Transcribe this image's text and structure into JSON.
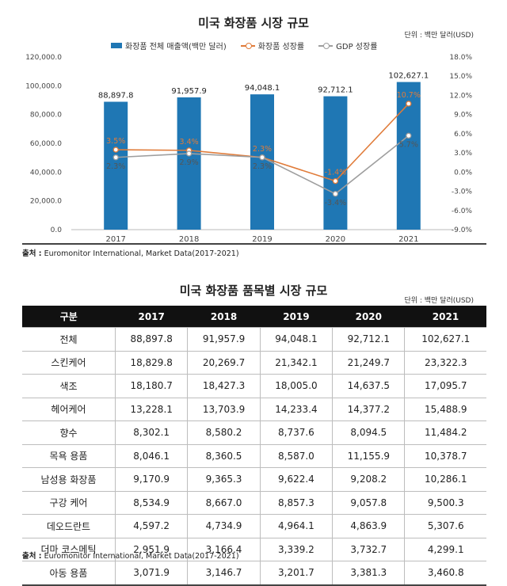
{
  "chart_title": "미국 화장품 시장 규모",
  "chart_unit": "단위 : 백만 달러(USD)",
  "legend": {
    "bar": "화장품 전체 매출액(백만 달러)",
    "line1": "화장품 성장률",
    "line2": "GDP 성장률"
  },
  "colors": {
    "bar": "#1f77b4",
    "line1": "#e07b39",
    "line2": "#9e9e9e"
  },
  "chart_data": {
    "type": "bar",
    "categories": [
      "2017",
      "2018",
      "2019",
      "2020",
      "2021"
    ],
    "series": [
      {
        "name": "화장품 전체 매출액(백만 달러)",
        "type": "bar",
        "axis": "left",
        "values": [
          88897.8,
          91957.9,
          94048.1,
          92712.1,
          102627.1
        ],
        "labels": [
          "88,897.8",
          "91,957.9",
          "94,048.1",
          "92,712.1",
          "102,627.1"
        ]
      },
      {
        "name": "화장품 성장률",
        "type": "line",
        "axis": "right",
        "values": [
          3.5,
          3.4,
          2.3,
          -1.4,
          10.7
        ],
        "labels": [
          "3.5%",
          "3.4%",
          "2.3%",
          "-1.4%",
          "10.7%"
        ]
      },
      {
        "name": "GDP 성장률",
        "type": "line",
        "axis": "right",
        "values": [
          2.3,
          2.9,
          2.3,
          -3.4,
          5.7
        ],
        "labels": [
          "2.3%",
          "2.9%",
          "2.3%",
          "-3.4%",
          "5.7%"
        ]
      }
    ],
    "ylim_left": [
      0,
      120000
    ],
    "yticks_left": [
      "0.0",
      "20,000.0",
      "40,000.0",
      "60,000.0",
      "80,000.0",
      "100,000.0",
      "120,000.0"
    ],
    "ylim_right": [
      -9,
      18
    ],
    "yticks_right": [
      "-9.0%",
      "-6.0%",
      "-3.0%",
      "0.0%",
      "3.0%",
      "6.0%",
      "9.0%",
      "12.0%",
      "15.0%",
      "18.0%"
    ],
    "grid": false,
    "legend_position": "top"
  },
  "source1": {
    "label": "출처 :",
    "text": " Euromonitor International, Market Data(2017-2021)"
  },
  "table_title": "미국 화장품 품목별 시장 규모",
  "table_unit": "단위 : 백만 달러(USD)",
  "table": {
    "headers": [
      "구분",
      "2017",
      "2018",
      "2019",
      "2020",
      "2021"
    ],
    "rows": [
      [
        "전체",
        "88,897.8",
        "91,957.9",
        "94,048.1",
        "92,712.1",
        "102,627.1"
      ],
      [
        "스킨케어",
        "18,829.8",
        "20,269.7",
        "21,342.1",
        "21,249.7",
        "23,322.3"
      ],
      [
        "색조",
        "18,180.7",
        "18,427.3",
        "18,005.0",
        "14,637.5",
        "17,095.7"
      ],
      [
        "헤어케어",
        "13,228.1",
        "13,703.9",
        "14,233.4",
        "14,377.2",
        "15,488.9"
      ],
      [
        "향수",
        "8,302.1",
        "8,580.2",
        "8,737.6",
        "8,094.5",
        "11,484.2"
      ],
      [
        "목욕 용품",
        "8,046.1",
        "8,360.5",
        "8,587.0",
        "11,155.9",
        "10,378.7"
      ],
      [
        "남성용 화장품",
        "9,170.9",
        "9,365.3",
        "9,622.4",
        "9,208.2",
        "10,286.1"
      ],
      [
        "구강 케어",
        "8,534.9",
        "8,667.0",
        "8,857.3",
        "9,057.8",
        "9,500.3"
      ],
      [
        "데오드란트",
        "4,597.2",
        "4,734.9",
        "4,964.1",
        "4,863.9",
        "5,307.6"
      ],
      [
        "더마 코스메틱",
        "2,951.9",
        "3,166.4",
        "3,339.2",
        "3,732.7",
        "4,299.1"
      ],
      [
        "아동 용품",
        "3,071.9",
        "3,146.7",
        "3,201.7",
        "3,381.3",
        "3,460.8"
      ]
    ]
  },
  "source2": {
    "label": "출처 :",
    "text": " Euromonitor International, Market Data(2017-2021)"
  }
}
